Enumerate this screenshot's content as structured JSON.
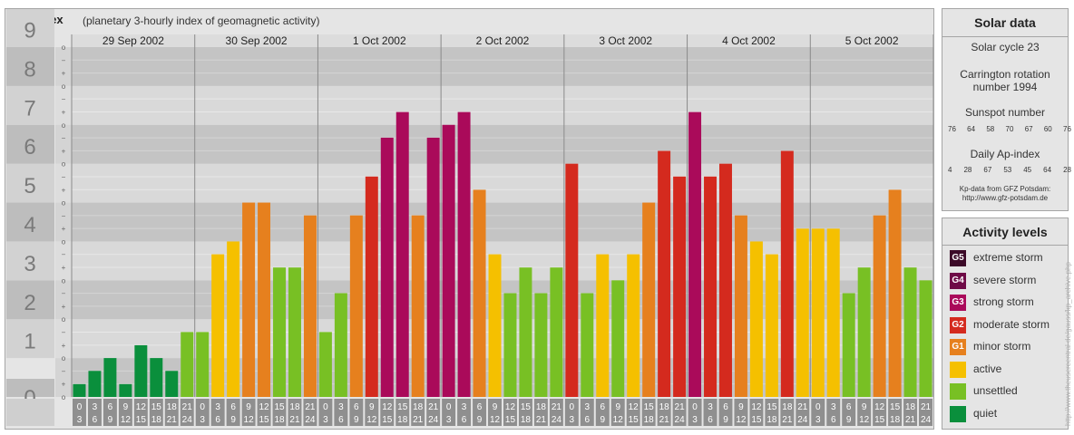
{
  "header": {
    "title": "Kp-index",
    "subtitle": "(planetary 3-hourly index of geomagnetic activity)"
  },
  "chart_data": {
    "type": "bar",
    "title": "Kp-index",
    "ylim": [
      0,
      9
    ],
    "y_ticks": [
      "0",
      "1",
      "2",
      "3",
      "4",
      "5",
      "6",
      "7",
      "8",
      "9"
    ],
    "minor_tick_marks": [
      "o",
      "+",
      "−"
    ],
    "days": [
      "29 Sep 2002",
      "30 Sep 2002",
      "1 Oct 2002",
      "2 Oct 2002",
      "3 Oct 2002",
      "4 Oct 2002",
      "5 Oct 2002"
    ],
    "interval_starts": [
      "0",
      "3",
      "6",
      "9",
      "12",
      "15",
      "18",
      "21"
    ],
    "interval_ends": [
      "3",
      "6",
      "9",
      "12",
      "15",
      "18",
      "21",
      "24"
    ],
    "values": [
      [
        0.33,
        0.67,
        1.0,
        0.33,
        1.33,
        1.0,
        0.67,
        1.67
      ],
      [
        1.67,
        3.67,
        4.0,
        5.0,
        5.0,
        3.33,
        3.33,
        4.67
      ],
      [
        1.67,
        2.67,
        4.67,
        5.67,
        6.67,
        7.33,
        4.67,
        6.67
      ],
      [
        7.0,
        7.33,
        5.33,
        3.67,
        2.67,
        3.33,
        2.67,
        3.33
      ],
      [
        6.0,
        2.67,
        3.67,
        3.0,
        3.67,
        5.0,
        6.33,
        5.67
      ],
      [
        7.33,
        5.67,
        6.0,
        4.67,
        4.0,
        3.67,
        6.33,
        4.33
      ],
      [
        4.33,
        4.33,
        2.67,
        3.33,
        4.67,
        5.33,
        3.33,
        3.0
      ]
    ]
  },
  "colors": {
    "quiet": "#0a8f3c",
    "unsettled": "#78c024",
    "active": "#f5c000",
    "minor_storm": "#e6801e",
    "moderate_storm": "#d42a1e",
    "strong_storm": "#aa0a5a",
    "severe_storm": "#6e0a46",
    "extreme_storm": "#3c0a28"
  },
  "solar": {
    "title": "Solar data",
    "cycle": "Solar cycle 23",
    "carrington_line1": "Carrington rotation",
    "carrington_line2": "number 1994",
    "sunspot_title": "Sunspot number",
    "sunspot_values": [
      "76",
      "64",
      "58",
      "70",
      "67",
      "60",
      "76"
    ],
    "ap_title": "Daily Ap-index",
    "ap_values": [
      "4",
      "28",
      "67",
      "53",
      "45",
      "64",
      "28"
    ],
    "source_line1": "Kp-data from GFZ Potsdam:",
    "source_line2": "http://www.gfz-potsdam.de"
  },
  "legend": {
    "title": "Activity levels",
    "items": [
      {
        "badge": "G5",
        "label": "extreme storm",
        "color": "#3c0a28"
      },
      {
        "badge": "G4",
        "label": "severe storm",
        "color": "#6e0a46"
      },
      {
        "badge": "G3",
        "label": "strong storm",
        "color": "#aa0a5a"
      },
      {
        "badge": "G2",
        "label": "moderate storm",
        "color": "#d42a1e"
      },
      {
        "badge": "G1",
        "label": "minor storm",
        "color": "#e6801e"
      },
      {
        "badge": "",
        "label": "active",
        "color": "#f5c000"
      },
      {
        "badge": "",
        "label": "unsettled",
        "color": "#78c024"
      },
      {
        "badge": "",
        "label": "quiet",
        "color": "#0a8f3c"
      }
    ]
  },
  "watermark": "http://www.theusercentral.de/gauss/kp_archive.php"
}
